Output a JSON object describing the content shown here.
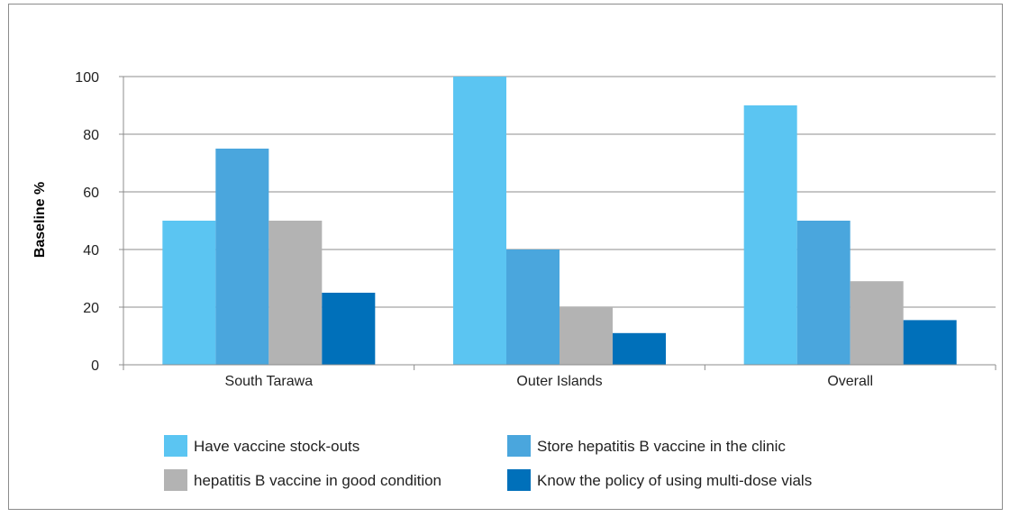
{
  "chart_data": {
    "type": "bar",
    "title": "",
    "xlabel": "",
    "ylabel": "Baseline %",
    "ylim": [
      0,
      100
    ],
    "yticks": [
      0,
      20,
      40,
      60,
      80,
      100
    ],
    "grid": true,
    "legend_position": "bottom",
    "categories": [
      "South Tarawa",
      "Outer Islands",
      "Overall"
    ],
    "series": [
      {
        "name": "Have vaccine stock-outs",
        "color": "#5bc5f2",
        "values": [
          50,
          100,
          90
        ]
      },
      {
        "name": "Store hepatitis B vaccine in the clinic",
        "color": "#4aa6dd",
        "values": [
          75,
          40,
          50
        ]
      },
      {
        "name": "hepatitis B vaccine in good condition",
        "color": "#b3b3b3",
        "values": [
          50,
          20,
          29
        ]
      },
      {
        "name": "Know the policy of using multi-dose vials",
        "color": "#0070ba",
        "values": [
          25,
          11,
          15.5
        ]
      }
    ]
  }
}
